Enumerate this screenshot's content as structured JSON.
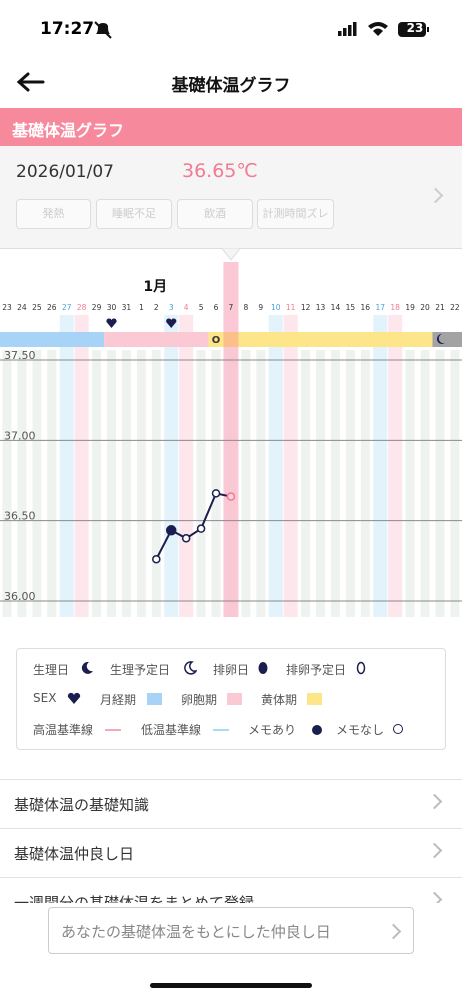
{
  "status_bar": {
    "time": "17:27",
    "battery": "23"
  },
  "nav": {
    "title": "基礎体温グラフ"
  },
  "banner": {
    "title": "基礎体温グラフ"
  },
  "detail": {
    "date": "2026/01/07",
    "temperature": "36.65℃",
    "tags": [
      "発熱",
      "睡眠不足",
      "飲酒",
      "計測時間ズレ"
    ]
  },
  "chart_data": {
    "type": "line",
    "month_label": "1月",
    "categories": [
      "23",
      "24",
      "25",
      "26",
      "27",
      "28",
      "29",
      "30",
      "31",
      "1",
      "2",
      "3",
      "4",
      "5",
      "6",
      "7",
      "8",
      "9",
      "10",
      "11",
      "12",
      "13",
      "14",
      "15",
      "16",
      "17",
      "18",
      "19",
      "20",
      "21",
      "22"
    ],
    "series": [
      {
        "color": "#1b1f4f",
        "values": [
          null,
          null,
          null,
          null,
          null,
          null,
          null,
          null,
          null,
          null,
          36.26,
          36.44,
          36.39,
          36.45,
          36.67,
          36.65,
          null,
          null,
          null,
          null,
          null,
          null,
          null,
          null,
          null,
          null,
          null,
          null,
          null,
          null,
          null
        ],
        "memo": [
          null,
          null,
          null,
          null,
          null,
          null,
          null,
          null,
          null,
          null,
          false,
          true,
          false,
          false,
          false,
          false,
          null,
          null,
          null,
          null,
          null,
          null,
          null,
          null,
          null,
          null,
          null,
          null,
          null,
          null,
          null
        ]
      }
    ],
    "ylim": [
      35.9,
      37.6
    ],
    "yticks": [
      {
        "value": 36,
        "label": "36.00"
      },
      {
        "value": 36.5,
        "label": "36.50"
      },
      {
        "value": 37,
        "label": "37.00"
      },
      {
        "value": 37.5,
        "label": "37.50"
      }
    ],
    "grid": true,
    "selected": "7",
    "saturdays": [
      "27",
      "3",
      "10",
      "17"
    ],
    "sundays": [
      "28",
      "4",
      "11",
      "18"
    ],
    "sex_days": [
      "30",
      "3"
    ],
    "phases": [
      {
        "from": "23",
        "to": "29",
        "color": "#a7d4f6"
      },
      {
        "from": "30",
        "to": "5",
        "color": "#fbc9d4"
      },
      {
        "from": "8",
        "to": "20",
        "color": "#fde58a"
      },
      {
        "from": "21",
        "to": "22",
        "color": "#a3a3a3"
      }
    ],
    "ovulation": {
      "day": "6",
      "label": "O"
    }
  },
  "legend": [
    "生理日",
    "生理予定日",
    "排卵日",
    "排卵予定日",
    "SEX",
    "月経期",
    "卵胞期",
    "黄体期",
    "高温基準線",
    "低温基準線",
    "メモあり",
    "メモなし"
  ],
  "menu": [
    "基礎体温の基礎知識",
    "基礎体温仲良し日",
    "一週間分の基礎体温をまとめて登録"
  ],
  "button": "あなたの基礎体温をもとにした仲良し日"
}
